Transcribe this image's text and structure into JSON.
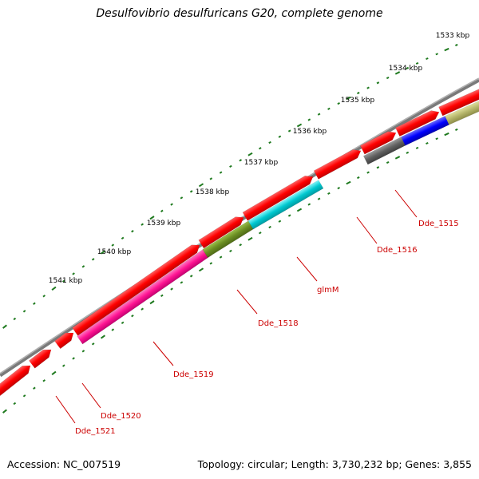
{
  "title": "Desulfovibrio desulfuricans G20, complete genome",
  "footer": {
    "accession": "Accession: NC_007519",
    "summary": "Topology: circular; Length: 3,730,232 bp; Genes: 3,855"
  },
  "kbp_ticks": [
    "1533 kbp",
    "1534 kbp",
    "1535 kbp",
    "1536 kbp",
    "1537 kbp",
    "1538 kbp",
    "1539 kbp",
    "1540 kbp",
    "1541 kbp"
  ],
  "gene_labels": [
    "Dde_1515",
    "Dde_1516",
    "glmM",
    "Dde_1518",
    "Dde_1519",
    "Dde_1520",
    "Dde_1521"
  ],
  "colors": {
    "backbone": "#808080",
    "forward_genes": "#ff0000",
    "tick": "#1f7a1f",
    "label": "#cc0000",
    "Dde_1515": "#606060",
    "Dde_1516": "#0000ff",
    "glmM": "#00c8d0",
    "Dde_1518": "#6b8e23",
    "Dde_1519": "#ff1493",
    "olive_block": "#b5b56a"
  }
}
